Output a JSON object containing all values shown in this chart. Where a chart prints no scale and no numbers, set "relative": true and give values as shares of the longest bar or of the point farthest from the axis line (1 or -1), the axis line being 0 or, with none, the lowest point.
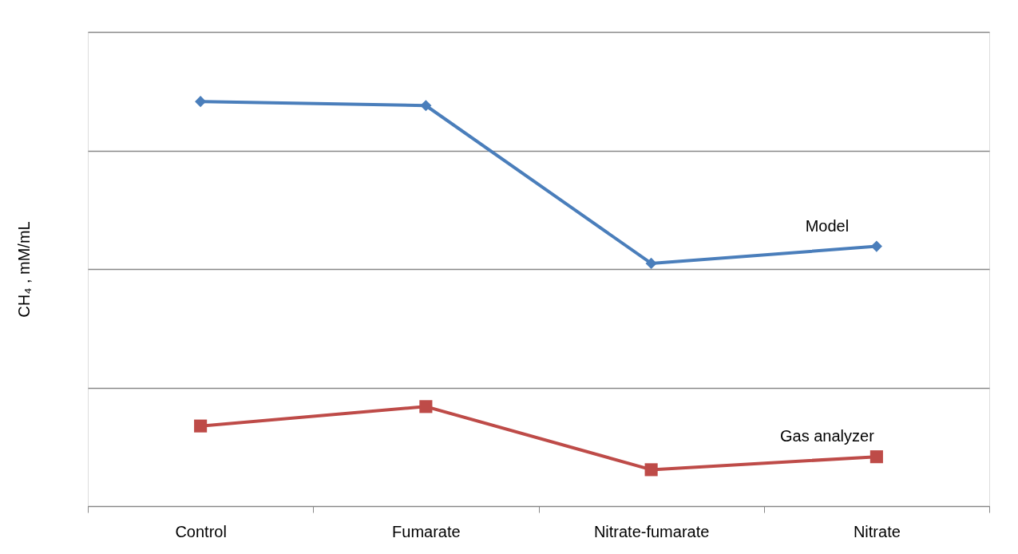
{
  "chart_data": {
    "type": "line",
    "ylabel": "CH₄ , mM/mL",
    "relative": true,
    "grid": "y",
    "categories": [
      "Control",
      "Fumarate",
      "Nitrate-fumarate",
      "Nitrate"
    ],
    "series": [
      {
        "name": "Model",
        "color": "#4a7ebb",
        "marker": "diamond",
        "values": [
          1,
          0.99,
          0.6,
          0.642
        ]
      },
      {
        "name": "Gas analyzer",
        "color": "#be4b48",
        "marker": "square",
        "values": [
          0.198,
          0.246,
          0.09,
          0.122
        ]
      }
    ]
  }
}
